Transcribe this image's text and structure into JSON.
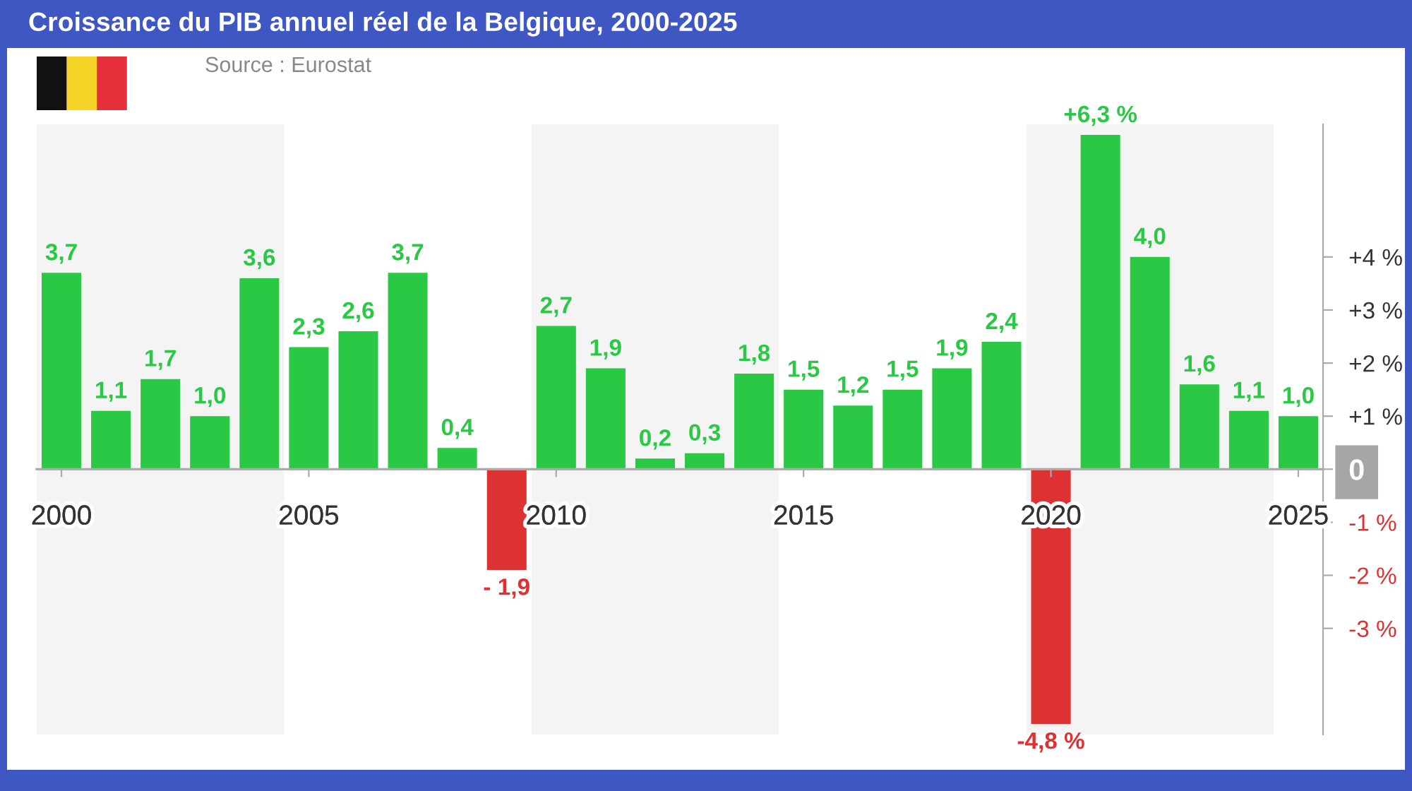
{
  "chart_data": {
    "type": "bar",
    "title": "Croissance du PIB annuel réel de la Belgique, 2000-2025",
    "annotations": [
      "Source : Eurostat"
    ],
    "x": [
      2000,
      2001,
      2002,
      2003,
      2004,
      2005,
      2006,
      2007,
      2008,
      2009,
      2010,
      2011,
      2012,
      2013,
      2014,
      2015,
      2016,
      2017,
      2018,
      2019,
      2020,
      2021,
      2022,
      2023,
      2024,
      2025
    ],
    "values": [
      3.7,
      1.1,
      1.7,
      1.0,
      3.6,
      2.3,
      2.6,
      3.7,
      0.4,
      -1.9,
      2.7,
      1.9,
      0.2,
      0.3,
      1.8,
      1.5,
      1.2,
      1.5,
      1.9,
      2.4,
      -4.8,
      6.3,
      4.0,
      1.6,
      1.1,
      1.0
    ],
    "value_labels": [
      "3,7",
      "1,1",
      "1,7",
      "1,0",
      "3,6",
      "2,3",
      "2,6",
      "3,7",
      "0,4",
      "- 1,9",
      "2,7",
      "1,9",
      "0,2",
      "0,3",
      "1,8",
      "1,5",
      "1,2",
      "1,5",
      "1,9",
      "2,4",
      "-4,8 %",
      "+6,3 %",
      "4,0",
      "1,6",
      "1,1",
      "1,0"
    ],
    "colors": [
      "#2bc845",
      "#2bc845",
      "#2bc845",
      "#2bc845",
      "#2bc845",
      "#2bc845",
      "#2bc845",
      "#2bc845",
      "#2bc845",
      "#dc3232",
      "#2bc845",
      "#2bc845",
      "#2bc845",
      "#2bc845",
      "#2bc845",
      "#2bc845",
      "#2bc845",
      "#2bc845",
      "#2bc845",
      "#2bc845",
      "#dc3232",
      "#2bc845",
      "#2bc845",
      "#2bc845",
      "#2bc845",
      "#2bc845"
    ],
    "xlim": [
      1999.5,
      2025.5
    ],
    "xticks": [
      2000,
      2005,
      2010,
      2015,
      2020,
      2025
    ],
    "ylim": [
      -5,
      6.5
    ],
    "yticks": [
      {
        "value": 4,
        "label": "+4 %"
      },
      {
        "value": 3,
        "label": "+3 %"
      },
      {
        "value": 2,
        "label": "+2 %"
      },
      {
        "value": 1,
        "label": "+1 %"
      },
      0,
      {
        "value": -1,
        "label": "-1 %"
      },
      {
        "value": -2,
        "label": "-2 %"
      },
      {
        "value": -3,
        "label": "-3 %"
      }
    ],
    "bands": [
      {
        "axis": "x",
        "from": 1999.5,
        "to": 2004.5,
        "color": "#f4f4f4"
      },
      {
        "axis": "x",
        "from": 2009.5,
        "to": 2014.5,
        "color": "#f4f4f4"
      },
      {
        "axis": "x",
        "from": 2019.5,
        "to": 2024.5,
        "color": "#f4f4f4"
      }
    ]
  }
}
